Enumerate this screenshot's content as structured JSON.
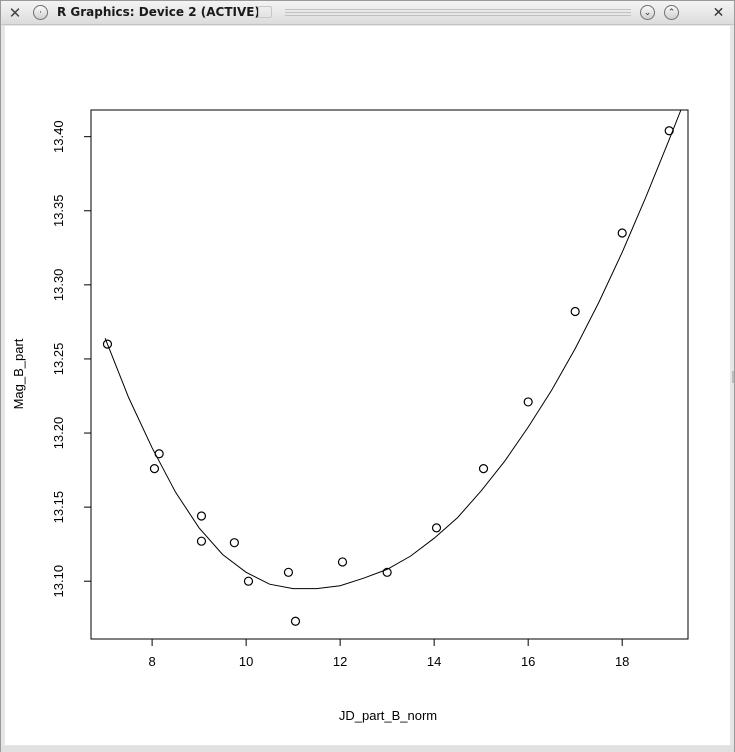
{
  "window": {
    "title": "R Graphics: Device 2 (ACTIVE)",
    "icons": {
      "app": "x-tools-icon",
      "menu": "window-menu-icon",
      "minimize": "minimize-icon",
      "maximize": "maximize-icon",
      "close": "close-icon"
    }
  },
  "chart_data": {
    "type": "scatter",
    "xlabel": "JD_part_B_norm",
    "ylabel": "Mag_B_part",
    "xlim": [
      6.7,
      19.4
    ],
    "ylim": [
      13.061,
      13.418
    ],
    "x_ticks": [
      8,
      10,
      12,
      14,
      16,
      18
    ],
    "y_ticks": [
      13.1,
      13.15,
      13.2,
      13.25,
      13.3,
      13.35,
      13.4
    ],
    "x_tick_labels": [
      "8",
      "10",
      "12",
      "14",
      "16",
      "18"
    ],
    "y_tick_labels": [
      "13.10",
      "13.15",
      "13.20",
      "13.25",
      "13.30",
      "13.35",
      "13.40"
    ],
    "grid": false,
    "legend": "none",
    "series": [
      {
        "kind": "points",
        "x": [
          7.05,
          8.05,
          8.15,
          9.05,
          9.05,
          9.75,
          10.05,
          10.9,
          11.05,
          12.05,
          13.0,
          14.05,
          15.05,
          16.0,
          17.0,
          18.0,
          19.0
        ],
        "y": [
          13.26,
          13.176,
          13.186,
          13.144,
          13.127,
          13.126,
          13.1,
          13.106,
          13.073,
          13.113,
          13.106,
          13.136,
          13.176,
          13.221,
          13.282,
          13.335,
          13.404
        ]
      },
      {
        "kind": "fitted-curve",
        "x": [
          7.0,
          7.5,
          8.0,
          8.5,
          9.0,
          9.5,
          10.0,
          10.5,
          11.0,
          11.5,
          12.0,
          12.5,
          13.0,
          13.5,
          14.0,
          14.5,
          15.0,
          15.5,
          16.0,
          16.5,
          17.0,
          17.5,
          18.0,
          18.5,
          19.0,
          19.25
        ],
        "y": [
          13.264,
          13.224,
          13.19,
          13.16,
          13.136,
          13.118,
          13.106,
          13.098,
          13.095,
          13.095,
          13.097,
          13.102,
          13.108,
          13.117,
          13.129,
          13.143,
          13.161,
          13.181,
          13.204,
          13.229,
          13.257,
          13.288,
          13.322,
          13.359,
          13.398,
          13.418
        ]
      }
    ]
  }
}
